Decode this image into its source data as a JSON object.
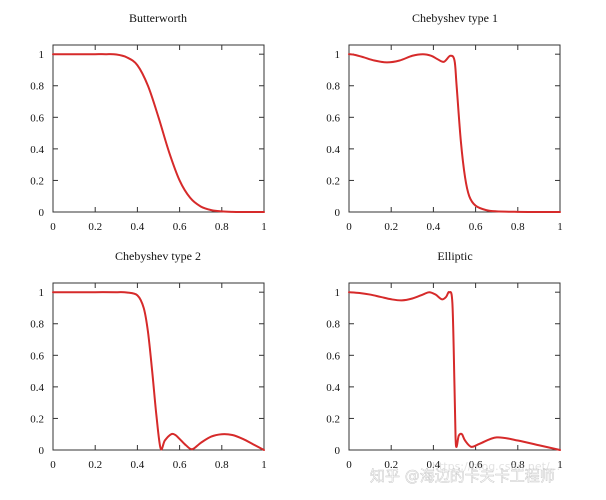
{
  "colors": {
    "line": "#d62a2a",
    "axis": "#333333",
    "text": "#111111"
  },
  "chart_data": [
    {
      "type": "line",
      "title": "Butterworth",
      "xlim": [
        0,
        1
      ],
      "ylim": [
        0,
        1
      ],
      "xticks": [
        "0",
        "0.2",
        "0.4",
        "0.6",
        "0.8",
        "1"
      ],
      "yticks": [
        "0",
        "0.2",
        "0.4",
        "0.6",
        "0.8",
        "1"
      ],
      "grid": false,
      "series": [
        {
          "x": [
            0,
            0.05,
            0.1,
            0.15,
            0.2,
            0.25,
            0.3,
            0.35,
            0.4,
            0.45,
            0.5,
            0.55,
            0.6,
            0.65,
            0.7,
            0.75,
            0.8,
            0.85,
            0.9,
            0.95,
            1
          ],
          "y": [
            1,
            1,
            1,
            1,
            1,
            1,
            0.998,
            0.98,
            0.93,
            0.8,
            0.6,
            0.38,
            0.2,
            0.09,
            0.035,
            0.012,
            0.004,
            0.001,
            0,
            0,
            0
          ]
        }
      ]
    },
    {
      "type": "line",
      "title": "Chebyshev type 1",
      "xlim": [
        0,
        1
      ],
      "ylim": [
        0,
        1
      ],
      "xticks": [
        "0",
        "0.2",
        "0.4",
        "0.6",
        "0.8",
        "1"
      ],
      "yticks": [
        "0",
        "0.2",
        "0.4",
        "0.6",
        "0.8",
        "1"
      ],
      "grid": false,
      "series": [
        {
          "x": [
            0,
            0.03,
            0.07,
            0.12,
            0.18,
            0.24,
            0.3,
            0.35,
            0.39,
            0.42,
            0.45,
            0.48,
            0.5,
            0.51,
            0.53,
            0.55,
            0.57,
            0.6,
            0.65,
            0.7,
            0.8,
            0.9,
            1
          ],
          "y": [
            1,
            0.995,
            0.98,
            0.96,
            0.948,
            0.96,
            0.99,
            1,
            0.99,
            0.968,
            0.952,
            0.99,
            0.96,
            0.8,
            0.45,
            0.22,
            0.1,
            0.04,
            0.012,
            0.004,
            0.001,
            0,
            0
          ]
        }
      ]
    },
    {
      "type": "line",
      "title": "Chebyshev type 2",
      "xlim": [
        0,
        1
      ],
      "ylim": [
        0,
        1
      ],
      "xticks": [
        "0",
        "0.2",
        "0.4",
        "0.6",
        "0.8",
        "1"
      ],
      "yticks": [
        "0",
        "0.2",
        "0.4",
        "0.6",
        "0.8",
        "1"
      ],
      "grid": false,
      "series": [
        {
          "x": [
            0,
            0.1,
            0.2,
            0.3,
            0.35,
            0.4,
            0.43,
            0.45,
            0.47,
            0.49,
            0.51,
            0.53,
            0.56,
            0.58,
            0.6,
            0.63,
            0.66,
            0.7,
            0.75,
            0.8,
            0.85,
            0.9,
            0.95,
            1
          ],
          "y": [
            1,
            1,
            1,
            1,
            0.998,
            0.98,
            0.9,
            0.75,
            0.5,
            0.22,
            0.01,
            0.06,
            0.1,
            0.095,
            0.07,
            0.03,
            0.005,
            0.045,
            0.085,
            0.1,
            0.095,
            0.07,
            0.035,
            0
          ]
        }
      ]
    },
    {
      "type": "line",
      "title": "Elliptic",
      "xlim": [
        0,
        1
      ],
      "ylim": [
        0,
        1
      ],
      "xticks": [
        "0",
        "0.2",
        "0.4",
        "0.6",
        "0.8",
        "1"
      ],
      "yticks": [
        "0",
        "0.2",
        "0.4",
        "0.6",
        "0.8",
        "1"
      ],
      "grid": false,
      "series": [
        {
          "x": [
            0,
            0.05,
            0.1,
            0.15,
            0.2,
            0.25,
            0.3,
            0.35,
            0.38,
            0.41,
            0.44,
            0.46,
            0.475,
            0.49,
            0.5,
            0.505,
            0.51,
            0.52,
            0.535,
            0.55,
            0.58,
            0.62,
            0.7,
            0.8,
            0.9,
            1
          ],
          "y": [
            1,
            0.995,
            0.985,
            0.97,
            0.955,
            0.948,
            0.96,
            0.985,
            1,
            0.985,
            0.955,
            0.97,
            1,
            0.93,
            0.4,
            0.08,
            0.02,
            0.09,
            0.1,
            0.06,
            0.02,
            0.04,
            0.08,
            0.06,
            0.03,
            0
          ]
        }
      ]
    }
  ],
  "watermark": {
    "main": "知乎 @海边的卡夫卡工程师",
    "url": "https://blog.csdn.net/..."
  }
}
